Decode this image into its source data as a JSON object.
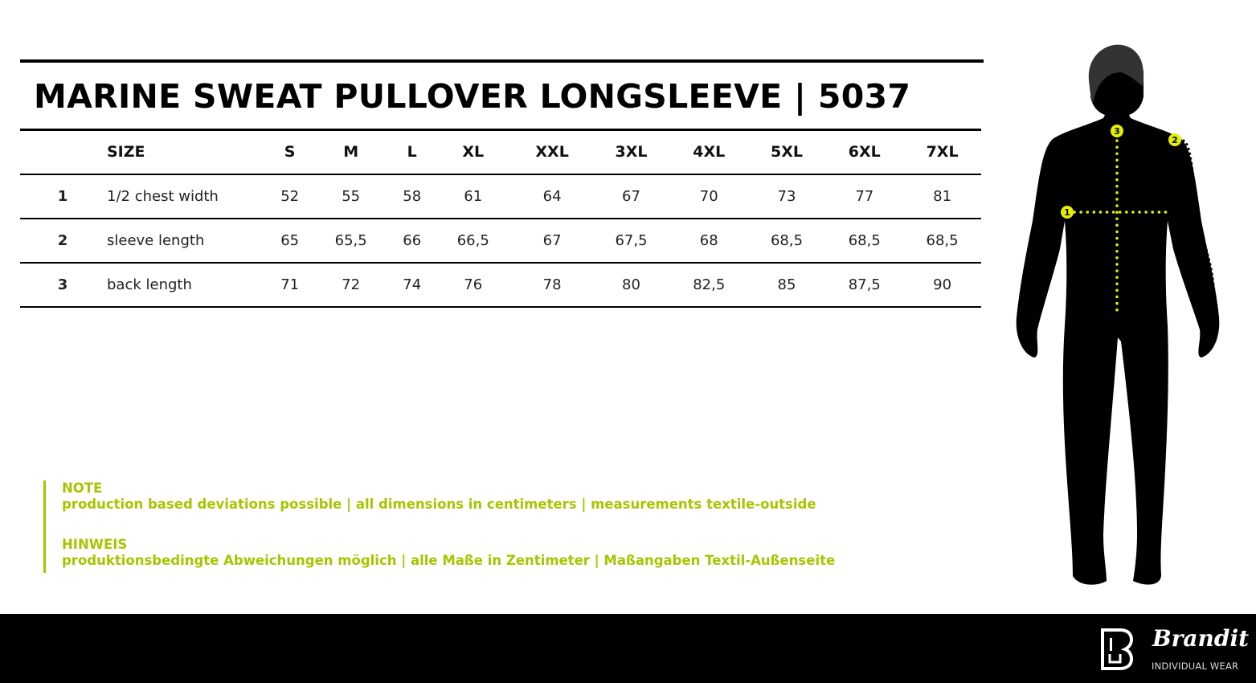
{
  "title": "MARINE SWEAT PULLOVER LONGSLEEVE | 5037",
  "table": {
    "header": {
      "label": "SIZE",
      "sizes": [
        "S",
        "M",
        "L",
        "XL",
        "XXL",
        "3XL",
        "4XL",
        "5XL",
        "6XL",
        "7XL"
      ]
    },
    "rows": [
      {
        "num": "1",
        "label": "1/2 chest width",
        "values": [
          "52",
          "55",
          "58",
          "61",
          "64",
          "67",
          "70",
          "73",
          "77",
          "81"
        ]
      },
      {
        "num": "2",
        "label": "sleeve length",
        "values": [
          "65",
          "65,5",
          "66",
          "66,5",
          "67",
          "67,5",
          "68",
          "68,5",
          "68,5",
          "68,5"
        ]
      },
      {
        "num": "3",
        "label": "back length",
        "values": [
          "71",
          "72",
          "74",
          "76",
          "78",
          "80",
          "82,5",
          "85",
          "87,5",
          "90"
        ]
      }
    ]
  },
  "notes": {
    "en_heading": "NOTE",
    "en_text": "production based deviations possible | all dimensions in centimeters | measurements textile-outside",
    "de_heading": "HINWEIS",
    "de_text": "produktionsbedingte Abweichungen möglich | alle Maße in Zentimeter | Maßangaben Textil-Außenseite"
  },
  "figure": {
    "markers": [
      "1",
      "2",
      "3"
    ]
  },
  "brand": {
    "name": "Brandit",
    "tagline": "INDIVIDUAL WEAR"
  },
  "colors": {
    "accent": "#a8c400",
    "dots": "#e5f000",
    "footer": "#000000"
  }
}
